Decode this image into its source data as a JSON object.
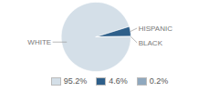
{
  "chart_data": {
    "type": "pie",
    "categories": [
      "WHITE",
      "HISPANIC",
      "BLACK"
    ],
    "values": [
      95.2,
      4.6,
      0.2
    ],
    "value_labels": [
      "95.2%",
      "4.6%",
      "0.2%"
    ],
    "colors": [
      "#d4dfe8",
      "#2e5f8a",
      "#8fa8be"
    ],
    "legend": "bottom"
  }
}
